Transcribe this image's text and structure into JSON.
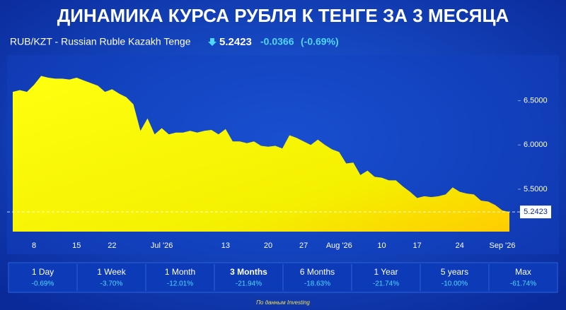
{
  "header": {
    "title": "ДИНАМИКА КУРСА РУБЛЯ К ТЕНГЕ ЗА 3 МЕСЯЦА",
    "pair": "RUB/KZT - Russian Ruble Kazakh Tenge",
    "price": "5.2423",
    "change": "-0.0366",
    "change_pct": "(-0.69%)"
  },
  "chart_data": {
    "type": "area",
    "color": "#ffff00",
    "categories": [
      null,
      null,
      null,
      "8",
      null,
      null,
      null,
      null,
      null,
      "15",
      null,
      null,
      null,
      null,
      "22",
      null,
      null,
      null,
      null,
      null,
      null,
      "Jul '26",
      null,
      null,
      null,
      null,
      null,
      null,
      null,
      null,
      "13",
      null,
      null,
      null,
      null,
      null,
      "20",
      null,
      null,
      null,
      null,
      "27",
      null,
      null,
      null,
      null,
      "Aug '26",
      null,
      null,
      null,
      null,
      null,
      "10",
      null,
      null,
      null,
      null,
      "17",
      null,
      null,
      null,
      null,
      null,
      "24",
      null,
      null,
      null,
      null,
      null,
      "Sep '26",
      null
    ],
    "values": [
      6.6,
      6.62,
      6.6,
      6.68,
      6.78,
      6.76,
      6.75,
      6.75,
      6.74,
      6.76,
      6.73,
      6.7,
      6.67,
      6.6,
      6.63,
      6.58,
      6.54,
      6.46,
      6.16,
      6.3,
      6.12,
      6.19,
      6.12,
      6.14,
      6.14,
      6.16,
      6.14,
      6.16,
      6.17,
      6.12,
      6.18,
      6.04,
      6.04,
      6.02,
      6.04,
      5.99,
      5.98,
      5.99,
      5.96,
      6.11,
      6.08,
      6.04,
      6.0,
      6.06,
      6.0,
      5.95,
      5.92,
      5.79,
      5.8,
      5.66,
      5.71,
      5.64,
      5.63,
      5.6,
      5.6,
      5.53,
      5.47,
      5.4,
      5.42,
      5.41,
      5.42,
      5.44,
      5.52,
      5.47,
      5.45,
      5.44,
      5.37,
      5.36,
      5.32,
      5.26,
      5.2423
    ],
    "ylim": [
      5.02,
      7.0
    ],
    "yticks": [
      {
        "value": 5.5,
        "label": "5.5000"
      },
      {
        "value": 6.0,
        "label": "6.0000"
      },
      {
        "value": 6.5,
        "label": "6.5000"
      }
    ]
  },
  "periods": [
    {
      "label": "1 Day",
      "change": "-0.69%"
    },
    {
      "label": "1 Week",
      "change": "-3.70%"
    },
    {
      "label": "1 Month",
      "change": "-12.01%"
    },
    {
      "label": "3 Months",
      "change": "-21.94%"
    },
    {
      "label": "6 Months",
      "change": "-18.63%"
    },
    {
      "label": "1 Year",
      "change": "-21.74%"
    },
    {
      "label": "5 years",
      "change": "-10.00%"
    },
    {
      "label": "Max",
      "change": "-61.74%"
    }
  ],
  "footer": "По данным Investing"
}
